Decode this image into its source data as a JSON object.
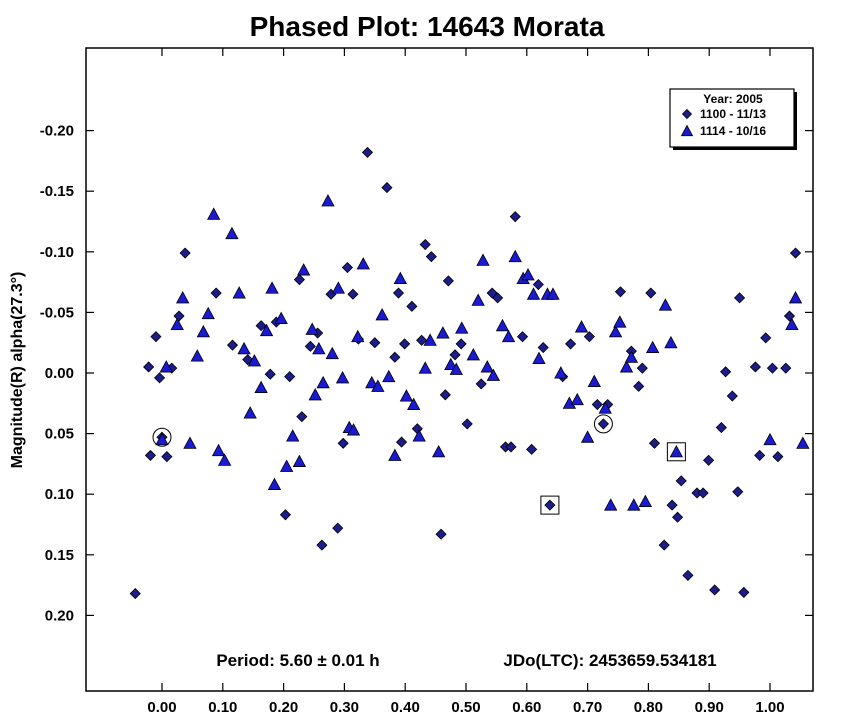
{
  "chart_data": {
    "type": "scatter",
    "title": "Phased Plot: 14643 Morata",
    "xlabel": "",
    "ylabel": "Magnitude(R) alpha(27.3°)",
    "xlim": [
      -0.12,
      1.08
    ],
    "ylim": [
      0.265,
      -0.265
    ],
    "y_inverted": true,
    "grid": false,
    "legend_position": "top-right",
    "x_ticks": [
      0.0,
      0.1,
      0.2,
      0.3,
      0.4,
      0.5,
      0.6,
      0.7,
      0.8,
      0.9,
      1.0
    ],
    "x_tick_labels": [
      "0.00",
      "0.10",
      "0.20",
      "0.30",
      "0.40",
      "0.50",
      "0.60",
      "0.70",
      "0.80",
      "0.90",
      "1.00"
    ],
    "y_ticks": [
      -0.2,
      -0.15,
      -0.1,
      -0.05,
      0.0,
      0.05,
      0.1,
      0.15,
      0.2
    ],
    "y_tick_labels": [
      "-0.20",
      "-0.15",
      "-0.10",
      "-0.05",
      "0.00",
      "0.05",
      "0.10",
      "0.15",
      "0.20"
    ],
    "legend_title": "Year: 2005",
    "annotations": {
      "period": "Period: 5.60 ± 0.01 h",
      "epoch": "JDo(LTC): 2453659.534181"
    },
    "series": [
      {
        "name": "1100 - 11/13",
        "marker": "diamond",
        "color": "#1c1c8a",
        "points": [
          [
            -0.044,
            0.182
          ],
          [
            -0.022,
            -0.005
          ],
          [
            -0.019,
            0.068
          ],
          [
            -0.01,
            -0.03
          ],
          [
            -0.004,
            0.004
          ],
          [
            0.0,
            0.053
          ],
          [
            0.008,
            0.069
          ],
          [
            0.016,
            -0.004
          ],
          [
            0.028,
            -0.047
          ],
          [
            0.038,
            -0.099
          ],
          [
            0.089,
            -0.066
          ],
          [
            0.116,
            -0.023
          ],
          [
            0.141,
            -0.011
          ],
          [
            0.163,
            -0.039
          ],
          [
            0.178,
            0.001
          ],
          [
            0.188,
            -0.042
          ],
          [
            0.203,
            0.117
          ],
          [
            0.21,
            0.003
          ],
          [
            0.226,
            -0.077
          ],
          [
            0.23,
            0.036
          ],
          [
            0.244,
            -0.022
          ],
          [
            0.256,
            -0.033
          ],
          [
            0.263,
            0.142
          ],
          [
            0.278,
            -0.065
          ],
          [
            0.289,
            0.128
          ],
          [
            0.298,
            0.058
          ],
          [
            0.305,
            -0.087
          ],
          [
            0.314,
            -0.065
          ],
          [
            0.323,
            -0.028
          ],
          [
            0.338,
            -0.182
          ],
          [
            0.35,
            -0.025
          ],
          [
            0.37,
            -0.153
          ],
          [
            0.383,
            -0.013
          ],
          [
            0.389,
            -0.066
          ],
          [
            0.394,
            0.057
          ],
          [
            0.399,
            -0.024
          ],
          [
            0.411,
            -0.055
          ],
          [
            0.42,
            0.046
          ],
          [
            0.427,
            -0.027
          ],
          [
            0.433,
            -0.106
          ],
          [
            0.443,
            -0.096
          ],
          [
            0.459,
            0.133
          ],
          [
            0.466,
            0.018
          ],
          [
            0.471,
            -0.076
          ],
          [
            0.482,
            -0.015
          ],
          [
            0.492,
            -0.024
          ],
          [
            0.502,
            0.042
          ],
          [
            0.525,
            0.009
          ],
          [
            0.543,
            -0.066
          ],
          [
            0.552,
            -0.062
          ],
          [
            0.565,
            0.061
          ],
          [
            0.574,
            0.061
          ],
          [
            0.581,
            -0.129
          ],
          [
            0.593,
            -0.03
          ],
          [
            0.608,
            0.063
          ],
          [
            0.619,
            -0.073
          ],
          [
            0.627,
            -0.021
          ],
          [
            0.638,
            0.109
          ],
          [
            0.659,
            0.003
          ],
          [
            0.672,
            -0.024
          ],
          [
            0.703,
            -0.03
          ],
          [
            0.716,
            0.026
          ],
          [
            0.726,
            0.042
          ],
          [
            0.733,
            0.026
          ],
          [
            0.754,
            -0.067
          ],
          [
            0.772,
            -0.018
          ],
          [
            0.784,
            0.011
          ],
          [
            0.79,
            -0.004
          ],
          [
            0.804,
            -0.066
          ],
          [
            0.81,
            0.058
          ],
          [
            0.826,
            0.142
          ],
          [
            0.839,
            0.109
          ],
          [
            0.848,
            0.119
          ],
          [
            0.854,
            0.089
          ],
          [
            0.865,
            0.167
          ],
          [
            0.88,
            0.099
          ],
          [
            0.89,
            0.099
          ],
          [
            0.899,
            0.072
          ],
          [
            0.909,
            0.179
          ],
          [
            0.92,
            0.045
          ],
          [
            0.927,
            -0.001
          ],
          [
            0.938,
            0.019
          ],
          [
            0.947,
            0.098
          ],
          [
            0.95,
            -0.062
          ],
          [
            0.957,
            0.181
          ],
          [
            0.976,
            -0.005
          ],
          [
            0.983,
            0.068
          ],
          [
            0.993,
            -0.029
          ],
          [
            1.004,
            -0.004
          ],
          [
            1.013,
            0.069
          ],
          [
            1.026,
            -0.004
          ],
          [
            1.032,
            -0.047
          ],
          [
            1.042,
            -0.099
          ]
        ]
      },
      {
        "name": "1114 - 10/16",
        "marker": "triangle",
        "color": "#1a1ad2",
        "points": [
          [
            0.0,
            0.055
          ],
          [
            0.007,
            -0.005
          ],
          [
            0.025,
            -0.04
          ],
          [
            0.034,
            -0.062
          ],
          [
            0.046,
            0.058
          ],
          [
            0.058,
            -0.014
          ],
          [
            0.068,
            -0.034
          ],
          [
            0.076,
            -0.049
          ],
          [
            0.085,
            -0.131
          ],
          [
            0.093,
            0.064
          ],
          [
            0.103,
            0.072
          ],
          [
            0.115,
            -0.115
          ],
          [
            0.127,
            -0.066
          ],
          [
            0.135,
            -0.02
          ],
          [
            0.145,
            0.033
          ],
          [
            0.152,
            -0.01
          ],
          [
            0.163,
            0.012
          ],
          [
            0.172,
            -0.035
          ],
          [
            0.181,
            -0.07
          ],
          [
            0.185,
            0.092
          ],
          [
            0.196,
            -0.045
          ],
          [
            0.205,
            0.077
          ],
          [
            0.215,
            0.052
          ],
          [
            0.226,
            0.073
          ],
          [
            0.233,
            -0.085
          ],
          [
            0.247,
            -0.036
          ],
          [
            0.252,
            0.018
          ],
          [
            0.258,
            -0.02
          ],
          [
            0.265,
            0.008
          ],
          [
            0.273,
            -0.142
          ],
          [
            0.28,
            -0.016
          ],
          [
            0.29,
            -0.07
          ],
          [
            0.297,
            0.004
          ],
          [
            0.308,
            0.045
          ],
          [
            0.315,
            0.047
          ],
          [
            0.322,
            -0.03
          ],
          [
            0.331,
            -0.09
          ],
          [
            0.345,
            0.008
          ],
          [
            0.355,
            0.011
          ],
          [
            0.362,
            -0.048
          ],
          [
            0.373,
            0.003
          ],
          [
            0.383,
            0.068
          ],
          [
            0.392,
            -0.078
          ],
          [
            0.402,
            0.019
          ],
          [
            0.414,
            0.026
          ],
          [
            0.423,
            0.052
          ],
          [
            0.433,
            -0.004
          ],
          [
            0.441,
            -0.027
          ],
          [
            0.455,
            0.065
          ],
          [
            0.462,
            -0.033
          ],
          [
            0.475,
            -0.007
          ],
          [
            0.484,
            -0.003
          ],
          [
            0.493,
            -0.037
          ],
          [
            0.512,
            -0.015
          ],
          [
            0.52,
            -0.06
          ],
          [
            0.528,
            -0.093
          ],
          [
            0.535,
            -0.005
          ],
          [
            0.545,
            0.002
          ],
          [
            0.56,
            -0.039
          ],
          [
            0.57,
            -0.03
          ],
          [
            0.581,
            -0.096
          ],
          [
            0.594,
            -0.078
          ],
          [
            0.602,
            -0.081
          ],
          [
            0.611,
            -0.065
          ],
          [
            0.62,
            -0.012
          ],
          [
            0.634,
            -0.065
          ],
          [
            0.643,
            -0.065
          ],
          [
            0.656,
            0.0
          ],
          [
            0.67,
            0.025
          ],
          [
            0.683,
            0.022
          ],
          [
            0.69,
            -0.038
          ],
          [
            0.7,
            0.053
          ],
          [
            0.711,
            0.007
          ],
          [
            0.729,
            0.029
          ],
          [
            0.738,
            0.109
          ],
          [
            0.746,
            -0.034
          ],
          [
            0.753,
            -0.042
          ],
          [
            0.764,
            -0.005
          ],
          [
            0.772,
            -0.013
          ],
          [
            0.776,
            0.109
          ],
          [
            0.795,
            0.106
          ],
          [
            0.807,
            -0.021
          ],
          [
            0.828,
            -0.056
          ],
          [
            0.837,
            -0.025
          ],
          [
            0.846,
            0.065
          ],
          [
            1.0,
            0.055
          ],
          [
            1.036,
            -0.04
          ],
          [
            1.042,
            -0.062
          ],
          [
            1.054,
            0.058
          ]
        ]
      }
    ],
    "highlighted_points": [
      {
        "series": "1100 - 11/13",
        "x": 0.0,
        "y": 0.053,
        "frame": "circle"
      },
      {
        "series": "1100 - 11/13",
        "x": 0.726,
        "y": 0.042,
        "frame": "circle"
      },
      {
        "series": "1100 - 11/13",
        "x": 0.638,
        "y": 0.109,
        "frame": "square"
      },
      {
        "series": "1114 - 10/16",
        "x": 0.846,
        "y": 0.065,
        "frame": "square"
      }
    ]
  }
}
